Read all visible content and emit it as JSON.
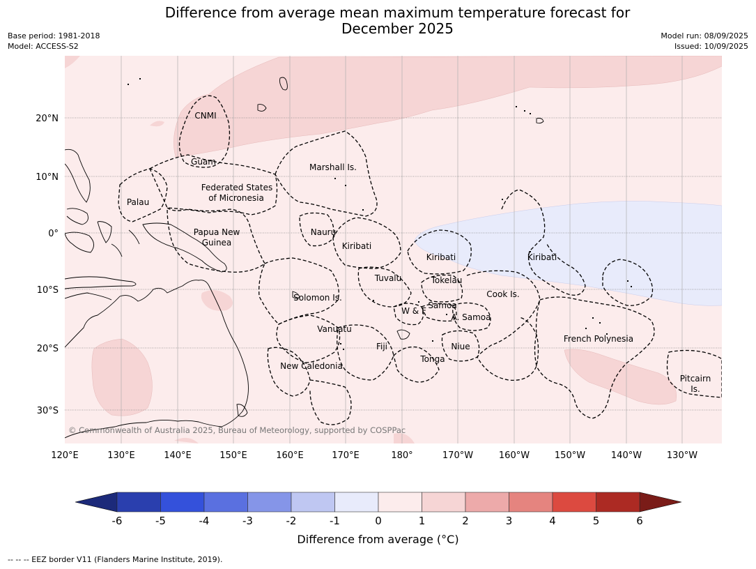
{
  "header": {
    "title_line1": "Difference from average mean maximum temperature forecast for",
    "title_line2": "December 2025",
    "base_period": "Base period: 1981-2018",
    "model": "Model: ACCESS-S2",
    "model_run": "Model run: 08/09/2025",
    "issued": "Issued: 10/09/2025"
  },
  "map": {
    "lon_labels": [
      "120°E",
      "130°E",
      "140°E",
      "150°E",
      "160°E",
      "170°E",
      "180°",
      "170°W",
      "160°W",
      "150°W",
      "140°W",
      "130°W"
    ],
    "lat_labels": [
      "20°N",
      "10°N",
      "0°",
      "10°S",
      "20°S",
      "30°S"
    ],
    "copyright": "© Commonwealth of Australia 2025, Bureau of Meteorology, supported by COSPPac",
    "places": {
      "cnmi": "CNMI",
      "guam": "Guam",
      "marshall": "Marshall Is.",
      "fsm1": "Federated States",
      "fsm2": "of Micronesia",
      "palau": "Palau",
      "png1": "Papua New",
      "png2": "Guinea",
      "nauru": "Nauru",
      "kiribati_w": "Kiribati",
      "kiribati_c": "Kiribati",
      "kiribati_e": "Kiribati",
      "tuvalu": "Tuvalu",
      "tokelau": "Tokelau",
      "cook": "Cook Is.",
      "solomon": "Solomon Is.",
      "samoa": "Samoa",
      "wf": "W & F",
      "asamoa": "A. Samoa",
      "vanuatu": "Vanuatu",
      "fiji": "Fiji",
      "niue": "Niue",
      "tonga": "Tonga",
      "frpoly": "French Polynesia",
      "newcal": "New Caledonia",
      "pitcairn1": "Pitcairn",
      "pitcairn2": "Is."
    }
  },
  "colorbar": {
    "ticks": [
      "-6",
      "-5",
      "-4",
      "-3",
      "-2",
      "-1",
      "0",
      "1",
      "2",
      "3",
      "4",
      "5",
      "6"
    ],
    "colors": [
      "#2a3fae",
      "#3451db",
      "#5a70e0",
      "#8595e8",
      "#bfc7f2",
      "#e8ebfb",
      "#fcecec",
      "#f6d5d5",
      "#edaaaa",
      "#e5847f",
      "#dc4a40",
      "#ac2a23"
    ],
    "under_color": "#1c2a7a",
    "over_color": "#7a1c18",
    "label": "Difference from average (°C)"
  },
  "footnote": "--  --  -- EEZ border V11 (Flanders Marine Institute, 2019)."
}
